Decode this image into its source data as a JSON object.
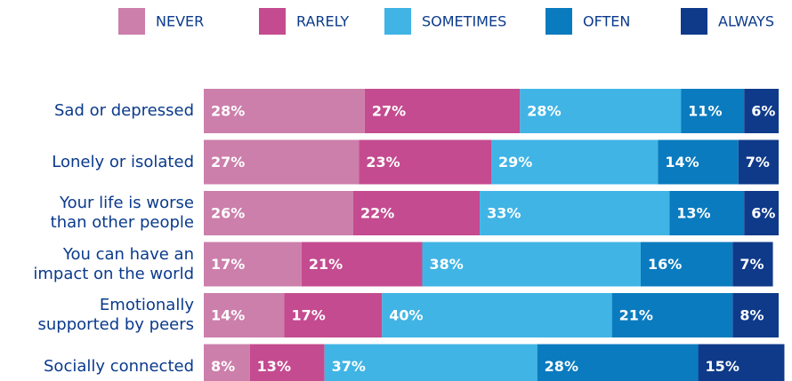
{
  "chart_data": {
    "type": "stacked-bar-horizontal",
    "categories": [
      "Sad or depressed",
      "Lonely or isolated",
      "Your life is worse\nthan other people",
      "You can have an\nimpact on the world",
      "Emotionally\nsupported by peers",
      "Socially connected"
    ],
    "xlim": [
      0,
      100
    ],
    "series": [
      {
        "name": "NEVER",
        "color": "#cc7fab",
        "values": [
          28,
          27,
          26,
          17,
          14,
          8
        ],
        "value_labels": [
          "28%",
          "27%",
          "26%",
          "17%",
          "14%",
          "8%"
        ]
      },
      {
        "name": "RARELY",
        "color": "#c44b8f",
        "values": [
          27,
          23,
          22,
          21,
          17,
          13
        ],
        "value_labels": [
          "27%",
          "23%",
          "22%",
          "21%",
          "17%",
          "13%"
        ]
      },
      {
        "name": "SOMETIMES",
        "color": "#40b4e5",
        "values": [
          28,
          29,
          33,
          38,
          40,
          37
        ],
        "value_labels": [
          "28%",
          "29%",
          "33%",
          "38%",
          "40%",
          "37%"
        ]
      },
      {
        "name": "OFTEN",
        "color": "#0a7bbf",
        "values": [
          11,
          14,
          13,
          16,
          21,
          28
        ],
        "value_labels": [
          "11%",
          "14%",
          "13%",
          "16%",
          "21%",
          "28%"
        ]
      },
      {
        "name": "ALWAYS",
        "color": "#0f3a8a",
        "values": [
          6,
          7,
          6,
          7,
          8,
          15
        ],
        "value_labels": [
          "6%",
          "7%",
          "6%",
          "7%",
          "8%",
          "15%"
        ]
      }
    ],
    "legend": "top"
  }
}
